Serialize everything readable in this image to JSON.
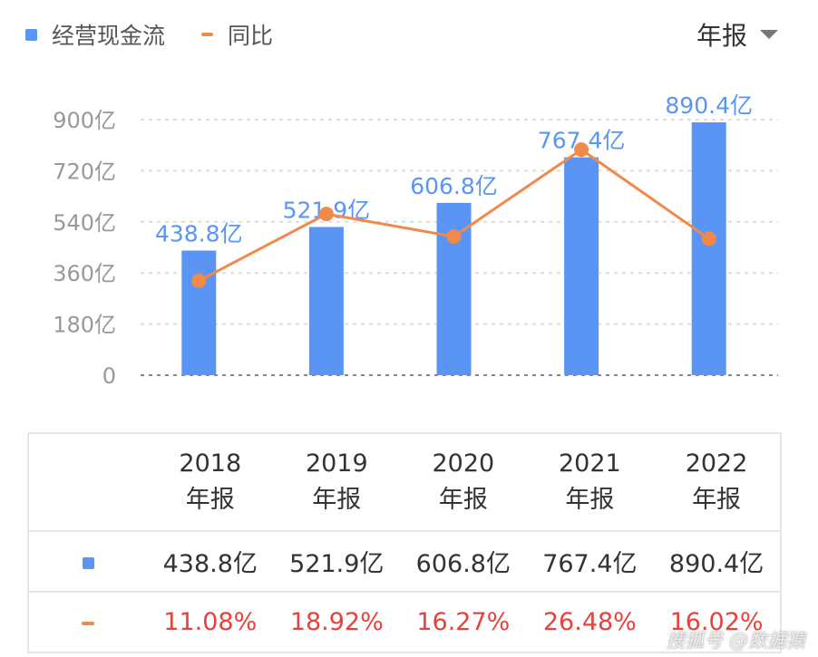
{
  "legend": {
    "bar": "经营现金流",
    "line": "同比"
  },
  "period_selector": "年报",
  "colors": {
    "bar": "#5a95f5",
    "line": "#f08a4b",
    "label": "#5a95f5",
    "negative": "#e8413b"
  },
  "chart_data": {
    "type": "bar+line",
    "categories": [
      "2018",
      "2019",
      "2020",
      "2021",
      "2022"
    ],
    "series": [
      {
        "name": "经营现金流",
        "type": "bar",
        "unit": "亿",
        "values": [
          438.8,
          521.9,
          606.8,
          767.4,
          890.4
        ],
        "labels": [
          "438.8亿",
          "521.9亿",
          "606.8亿",
          "767.4亿",
          "890.4亿"
        ]
      },
      {
        "name": "同比",
        "type": "line",
        "unit": "%",
        "values": [
          11.08,
          18.92,
          16.27,
          26.48,
          16.02
        ]
      }
    ],
    "yticks": [
      "0",
      "180亿",
      "360亿",
      "540亿",
      "720亿",
      "900亿"
    ],
    "ytick_values": [
      0,
      180,
      360,
      540,
      720,
      900
    ],
    "ylim": [
      0,
      900
    ],
    "y2lim": [
      0,
      30
    ],
    "grid": true
  },
  "table": {
    "years": [
      "2018",
      "2019",
      "2020",
      "2021",
      "2022"
    ],
    "period": "年报",
    "cash_flow": [
      "438.8亿",
      "521.9亿",
      "606.8亿",
      "767.4亿",
      "890.4亿"
    ],
    "yoy": [
      "11.08%",
      "18.92%",
      "16.27%",
      "26.48%",
      "16.02%"
    ]
  },
  "watermark": "搜狐号 @数据猿"
}
